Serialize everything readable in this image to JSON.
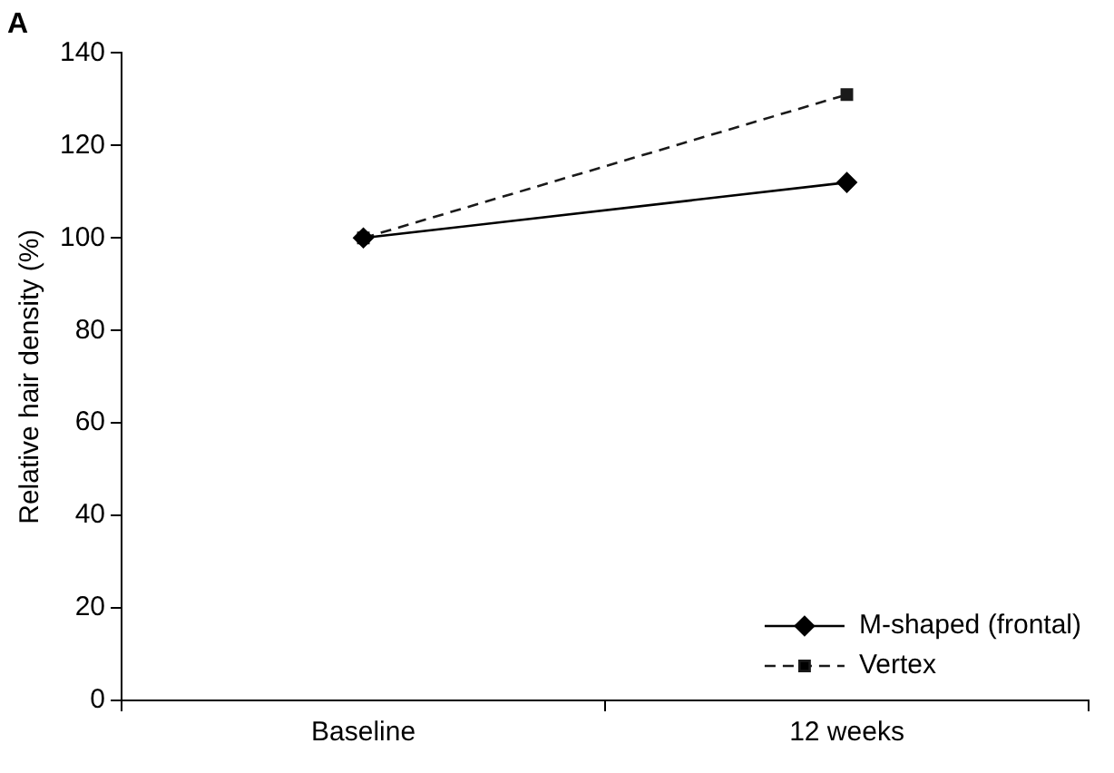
{
  "chart_data": {
    "type": "line",
    "title": "A",
    "ylabel": "Relative hair density (%)",
    "categories": [
      "Baseline",
      "12 weeks"
    ],
    "series": [
      {
        "name": "M-shaped (frontal)",
        "color": "#000000",
        "values": [
          100,
          112
        ],
        "marker": "diamond",
        "line_style": "solid"
      },
      {
        "name": "Vertex",
        "color": "#1a1a1a",
        "values": [
          100,
          131
        ],
        "marker": "square",
        "line_style": "dashed"
      }
    ],
    "ylim": [
      0,
      140
    ],
    "yticks": [
      0,
      20,
      40,
      60,
      80,
      100,
      120,
      140
    ],
    "grid": false,
    "legend": "bottom right"
  }
}
